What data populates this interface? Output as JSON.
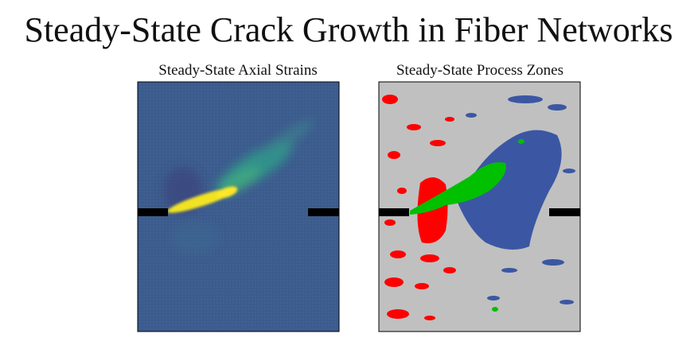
{
  "header": {
    "title": "Steady-State Crack Growth in Fiber Networks"
  },
  "panels": [
    {
      "title": "Steady-State Axial Strains"
    },
    {
      "title": "Steady-State Process Zones"
    }
  ]
}
